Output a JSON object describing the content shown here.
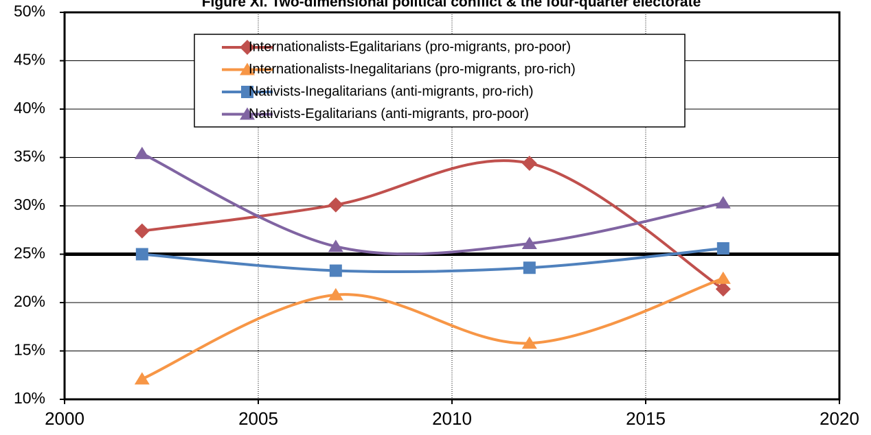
{
  "chart_data": {
    "type": "line",
    "title": "Figure XI. Two-dimensional political conflict & the four-quarter electorate",
    "x": [
      2002,
      2007,
      2012,
      2017
    ],
    "series": [
      {
        "name": "Internationalists-Egalitarians (pro-migrants, pro-poor)",
        "color": "#c0504d",
        "marker": "diamond",
        "values": [
          27.4,
          30.1,
          34.4,
          21.4
        ]
      },
      {
        "name": "Internationalists-Inegalitarians (pro-migrants, pro-rich)",
        "color": "#f79646",
        "marker": "triangle",
        "values": [
          12.1,
          20.8,
          15.8,
          22.5
        ]
      },
      {
        "name": "Nativists-Inegalitarians (anti-migrants, pro-rich)",
        "color": "#4f81bd",
        "marker": "square",
        "values": [
          25.0,
          23.3,
          23.6,
          25.6
        ]
      },
      {
        "name": "Nativists-Egalitarians (anti-migrants, pro-poor)",
        "color": "#8064a2",
        "marker": "triangle",
        "values": [
          35.4,
          25.8,
          26.1,
          30.3
        ]
      }
    ],
    "xlim": [
      2000,
      2020
    ],
    "xticks": [
      2000,
      2005,
      2010,
      2015,
      2020
    ],
    "ylim": [
      10,
      50
    ],
    "yticks": [
      {
        "value": 10,
        "label": "10%"
      },
      {
        "value": 15,
        "label": "15%"
      },
      {
        "value": 20,
        "label": "20%"
      },
      {
        "value": 25,
        "label": "25%"
      },
      {
        "value": 30,
        "label": "30%"
      },
      {
        "value": 35,
        "label": "35%"
      },
      {
        "value": 40,
        "label": "40%"
      },
      {
        "value": 45,
        "label": "45%"
      },
      {
        "value": 50,
        "label": "50%"
      }
    ],
    "reference_line": 25,
    "smooth": true,
    "grid": true,
    "legend": "top"
  }
}
